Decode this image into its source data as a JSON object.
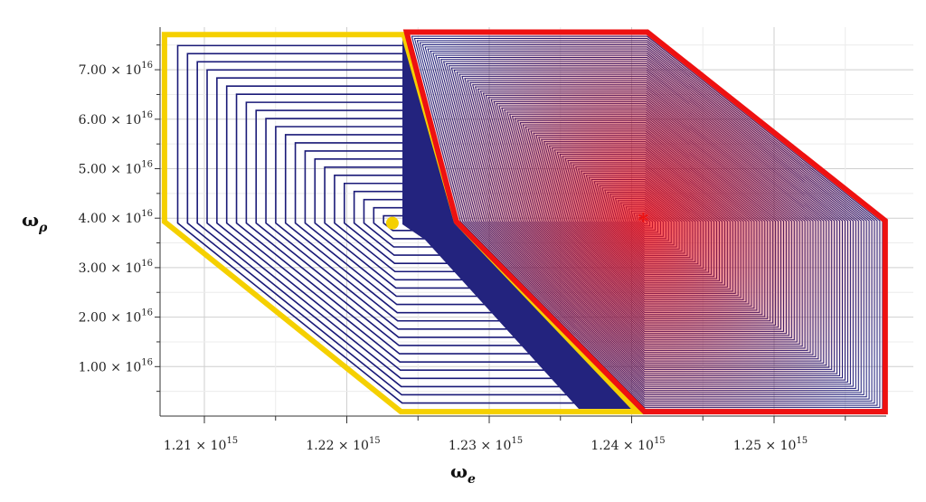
{
  "chart_data": {
    "type": "line",
    "title": "",
    "xlabel": {
      "base": "ω",
      "sub": "e"
    },
    "ylabel": {
      "base": "ω",
      "sub": "ρ"
    },
    "x_unit_exponent": 15,
    "y_unit_exponent": 16,
    "xlim": [
      1.2072,
      1.2585
    ],
    "ylim": [
      0,
      7.85
    ],
    "grid": true,
    "x_ticks": [
      {
        "value": 1.21,
        "label": "1.21 × 10",
        "exp": "15"
      },
      {
        "value": 1.22,
        "label": "1.22 × 10",
        "exp": "15"
      },
      {
        "value": 1.23,
        "label": "1.23 × 10",
        "exp": "15"
      },
      {
        "value": 1.24,
        "label": "1.24 × 10",
        "exp": "15"
      },
      {
        "value": 1.25,
        "label": "1.25 × 10",
        "exp": "15"
      }
    ],
    "y_ticks": [
      {
        "value": 1,
        "label": "1.00 × 10",
        "exp": "16"
      },
      {
        "value": 2,
        "label": "2.00 × 10",
        "exp": "16"
      },
      {
        "value": 3,
        "label": "3.00 × 10",
        "exp": "16"
      },
      {
        "value": 4,
        "label": "4.00 × 10",
        "exp": "16"
      },
      {
        "value": 5,
        "label": "5.00 × 10",
        "exp": "16"
      },
      {
        "value": 6,
        "label": "6.00 × 10",
        "exp": "16"
      },
      {
        "value": 7,
        "label": "7.00 × 10",
        "exp": "16"
      }
    ],
    "yellow_region": [
      [
        1.2072,
        7.71
      ],
      [
        1.224,
        7.71
      ],
      [
        1.2277,
        3.93
      ],
      [
        1.2404,
        0.09
      ],
      [
        1.2238,
        0.09
      ],
      [
        1.2072,
        3.93
      ]
    ],
    "red_region": [
      [
        1.2242,
        7.76
      ],
      [
        1.2411,
        7.76
      ],
      [
        1.2578,
        3.95
      ],
      [
        1.2578,
        0.09
      ],
      [
        1.2409,
        0.09
      ],
      [
        1.2277,
        3.93
      ]
    ],
    "yellow_center": [
      1.2232,
      3.9
    ],
    "red_center": [
      1.2409,
      3.93
    ],
    "yellow_contour_count": 22,
    "red_contour_count": 90,
    "colors": {
      "yellow": "#f5d000",
      "red": "#ee1111",
      "contour": "#1a1a78",
      "grid": "#cfcfcf"
    }
  }
}
